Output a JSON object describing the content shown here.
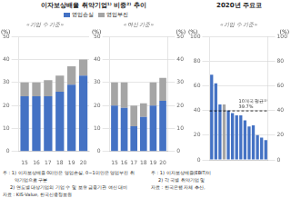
{
  "chart_data": [
    {
      "type": "bar",
      "title": "이자보상배율 취약기업¹⁾ 비중²⁾ 추이",
      "subtitle": "«기업 수 기준»",
      "ylabel": "(%)",
      "categories": [
        "15",
        "16",
        "17",
        "18",
        "19",
        "20"
      ],
      "series": [
        {
          "name": "영업손실",
          "color": "#4472C4",
          "values": [
            24,
            24,
            24,
            26,
            29,
            33
          ]
        },
        {
          "name": "영업부진",
          "color": "#A5A5A5",
          "values": [
            6,
            6,
            7,
            7,
            8,
            7
          ]
        }
      ],
      "stacked": true,
      "ylim": [
        0,
        50
      ],
      "yticks": [
        0,
        10,
        20,
        30,
        40,
        50
      ],
      "grid": true,
      "legend": "top",
      "annotations": [
        "주 : 1) 이자보상배율 0미만은 영업손실, 0~1미만은 영업부진 취",
        "        약기업으로 구분",
        "     2) 연도별 대상기업의 기업 수 및 보유 금융기관 여신 대비",
        "자료 : KIS-Value, 한국신용정보원"
      ]
    },
    {
      "type": "bar",
      "subtitle": "«여신 기준»",
      "ylabel": "(%)",
      "y2label": "(%)",
      "categories": [
        "15",
        "16",
        "17",
        "18",
        "19",
        "20"
      ],
      "series": [
        {
          "name": "영업손실",
          "color": "#4472C4",
          "values": [
            20,
            19,
            11,
            15,
            20,
            22
          ]
        },
        {
          "name": "영업부진",
          "color": "#A5A5A5",
          "values": [
            10,
            11,
            9,
            6,
            10,
            10
          ]
        }
      ],
      "stacked": true,
      "ylim": [
        0,
        50
      ],
      "yticks": [
        0,
        10,
        20,
        30,
        40,
        50
      ],
      "y2lim": [
        0,
        50
      ],
      "y2ticks": [
        0,
        10,
        20,
        30,
        40,
        50
      ],
      "grid": true
    },
    {
      "type": "bar",
      "title": "2020년 주요코",
      "subtitle": "«기업 수 기준»",
      "ylabel": "(%)",
      "y2label": "(%)",
      "categories": [
        null,
        null,
        null,
        null,
        null,
        null,
        null,
        null,
        null,
        null,
        null,
        null,
        null,
        null
      ],
      "values": [
        69,
        62,
        45,
        45,
        40,
        38,
        36,
        36,
        32,
        27,
        28,
        20,
        18,
        16
      ],
      "colors": [
        "#4472C4",
        "#4472C4",
        "#4472C4",
        "#A5A5A5",
        "#4472C4",
        "#4472C4",
        "#4472C4",
        "#4472C4",
        "#4472C4",
        "#4472C4",
        "#4472C4",
        "#4472C4",
        "#4472C4",
        "#4472C4"
      ],
      "reference_line": 39.7,
      "reference_label": "10개국 평균²⁾\n39.7%",
      "ylim": [
        0,
        100
      ],
      "yticks": [
        0,
        20,
        40,
        60,
        80,
        100
      ],
      "y2lim": [
        0,
        100
      ],
      "y2ticks": [
        0,
        20,
        40,
        60,
        80,
        100
      ],
      "grid": true,
      "tick_labels": "y",
      "annotations": [
        "주 : 1) 이자보상배율(EBIT/이",
        "     2) 각 국별 취약기업 및",
        "자료 : 한국은행 자체 추산,"
      ]
    }
  ]
}
